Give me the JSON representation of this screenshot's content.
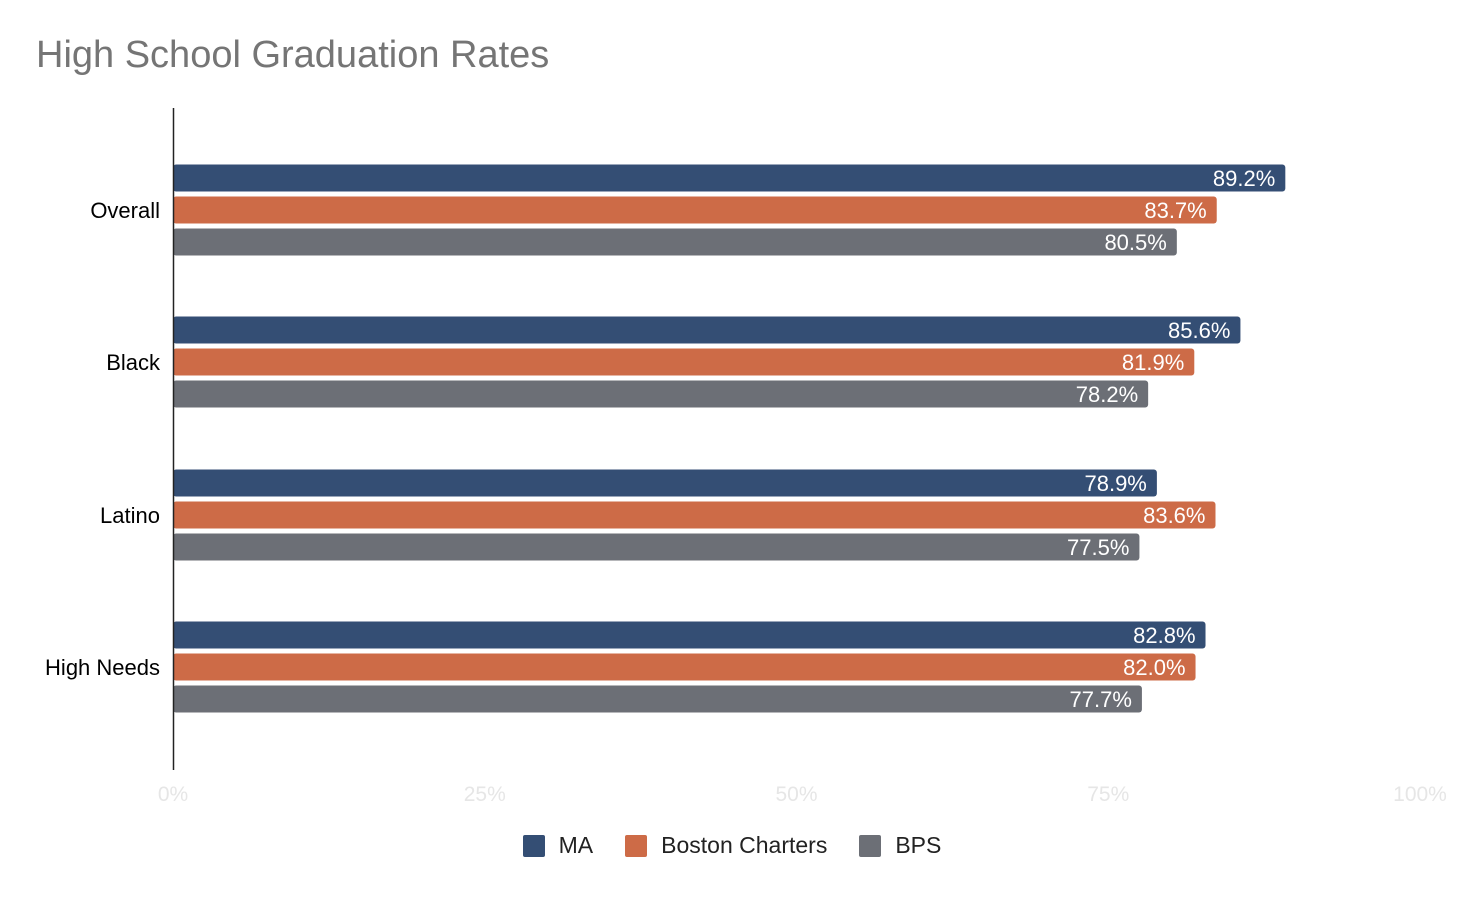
{
  "chart_data": {
    "type": "bar",
    "orientation": "horizontal",
    "title": "High School Graduation Rates",
    "categories": [
      "Overall",
      "Black",
      "Latino",
      "High Needs"
    ],
    "series": [
      {
        "name": "MA",
        "color": "#344e74",
        "values": [
          89.2,
          85.6,
          78.9,
          82.8
        ],
        "labels": [
          "89.2%",
          "85.6%",
          "78.9%",
          "82.8%"
        ]
      },
      {
        "name": "Boston Charters",
        "color": "#cd6b47",
        "values": [
          83.7,
          81.9,
          83.6,
          82.0
        ],
        "labels": [
          "83.7%",
          "81.9%",
          "83.6%",
          "82.0%"
        ]
      },
      {
        "name": "BPS",
        "color": "#6c6f76",
        "values": [
          80.5,
          78.2,
          77.5,
          77.7
        ],
        "labels": [
          "80.5%",
          "78.2%",
          "77.5%",
          "77.7%"
        ]
      }
    ],
    "xlim": [
      0,
      100
    ],
    "x_ticks": [
      0,
      25,
      50,
      75,
      100
    ],
    "x_tick_labels": [
      "0%",
      "25%",
      "50%",
      "75%",
      "100%"
    ],
    "xlabel": "",
    "ylabel": "",
    "legend_position": "bottom-center",
    "grid": false
  }
}
